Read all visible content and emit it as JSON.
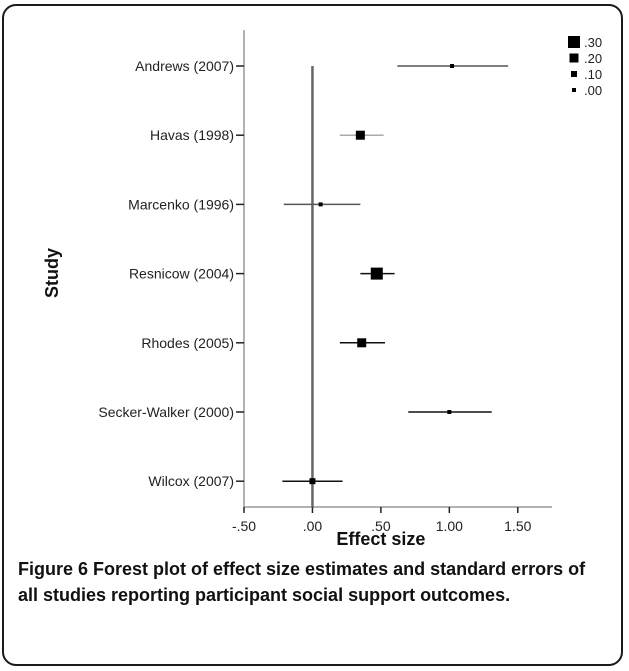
{
  "chart_data": {
    "type": "scatter",
    "subtype": "forest-plot",
    "xlabel": "Effect size",
    "ylabel": "Study",
    "xlim": [
      -0.5,
      1.75
    ],
    "xticks": [
      -0.5,
      0.0,
      0.5,
      1.0,
      1.5
    ],
    "xtick_labels": [
      "-.50",
      ".00",
      ".50",
      "1.00",
      "1.50"
    ],
    "reference_line_x": 0.0,
    "studies": [
      {
        "label": "Andrews (2007)",
        "effect": 1.02,
        "lower": 0.62,
        "upper": 1.43,
        "weight": 0.0,
        "ci_color": "#555555"
      },
      {
        "label": "Havas (1998)",
        "effect": 0.35,
        "lower": 0.2,
        "upper": 0.52,
        "weight": 0.2,
        "ci_color": "#aaaaaa"
      },
      {
        "label": "Marcenko (1996)",
        "effect": 0.06,
        "lower": -0.21,
        "upper": 0.35,
        "weight": 0.0,
        "ci_color": "#555555"
      },
      {
        "label": "Resnicow (2004)",
        "effect": 0.47,
        "lower": 0.35,
        "upper": 0.6,
        "weight": 0.3,
        "ci_color": "#111111"
      },
      {
        "label": "Rhodes (2005)",
        "effect": 0.36,
        "lower": 0.2,
        "upper": 0.53,
        "weight": 0.2,
        "ci_color": "#111111"
      },
      {
        "label": "Secker-Walker (2000)",
        "effect": 1.0,
        "lower": 0.7,
        "upper": 1.31,
        "weight": 0.0,
        "ci_color": "#111111"
      },
      {
        "label": "Wilcox (2007)",
        "effect": 0.0,
        "lower": -0.22,
        "upper": 0.22,
        "weight": 0.1,
        "ci_color": "#111111"
      }
    ],
    "legend": {
      "placement": "top-right",
      "entries": [
        {
          "label": ".30",
          "weight": 0.3
        },
        {
          "label": ".20",
          "weight": 0.2
        },
        {
          "label": ".10",
          "weight": 0.1
        },
        {
          "label": ".00",
          "weight": 0.0
        }
      ]
    },
    "grid": false
  },
  "caption": {
    "label": "Figure 6",
    "text": " Forest plot of effect size estimates and standard errors of all studies reporting participant social support outcomes."
  }
}
